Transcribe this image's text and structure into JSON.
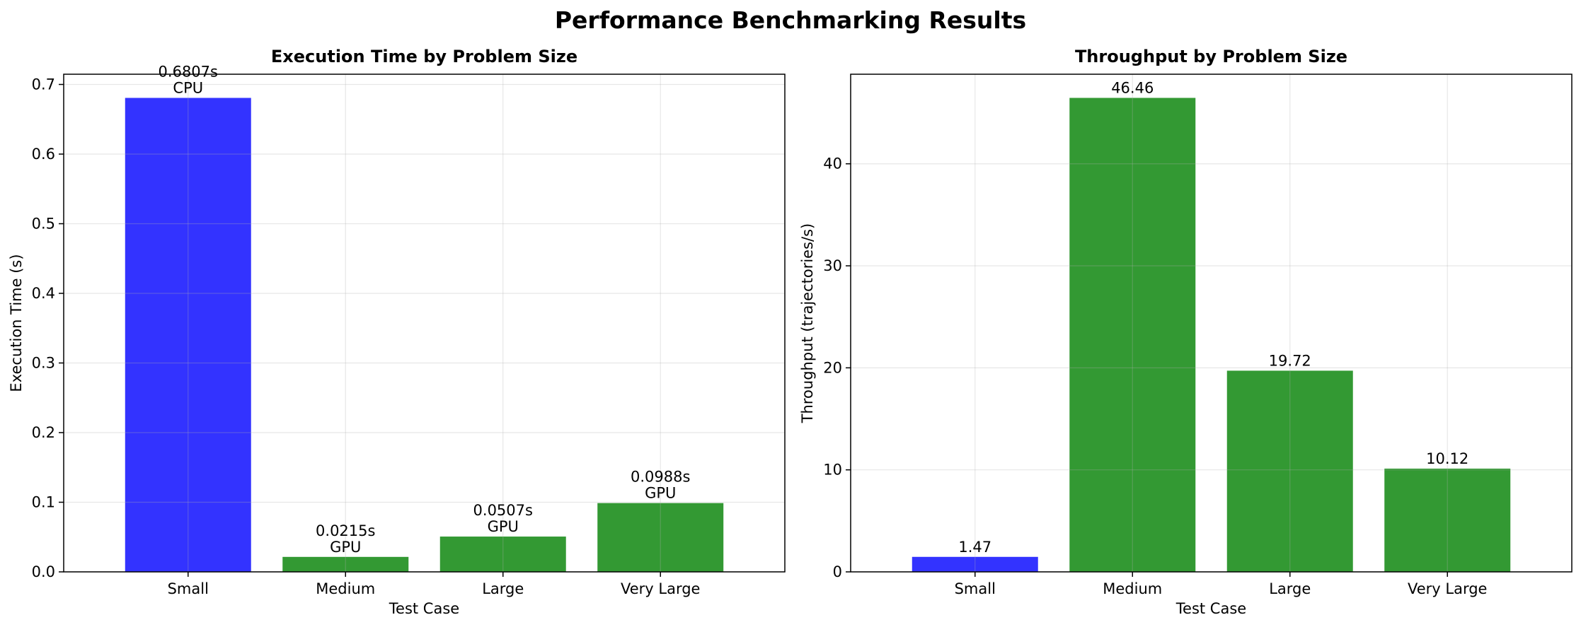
{
  "figure_title": "Performance Benchmarking Results",
  "colors": {
    "cpu": "#3333ff",
    "gpu": "#339933"
  },
  "chart_data": [
    {
      "type": "bar",
      "title": "Execution Time by Problem Size",
      "xlabel": "Test Case",
      "ylabel": "Execution Time (s)",
      "categories": [
        "Small",
        "Medium",
        "Large",
        "Very Large"
      ],
      "values": [
        0.6807,
        0.0215,
        0.0507,
        0.0988
      ],
      "bar_labels": [
        "0.6807s\nCPU",
        "0.0215s\nGPU",
        "0.0507s\nGPU",
        "0.0988s\nGPU"
      ],
      "bar_colors": [
        "cpu",
        "gpu",
        "gpu",
        "gpu"
      ],
      "ylim": [
        0,
        0.7147
      ],
      "yticks": [
        0.0,
        0.1,
        0.2,
        0.3,
        0.4,
        0.5,
        0.6,
        0.7
      ],
      "ytick_labels": [
        "0.0",
        "0.1",
        "0.2",
        "0.3",
        "0.4",
        "0.5",
        "0.6",
        "0.7"
      ],
      "grid": true
    },
    {
      "type": "bar",
      "title": "Throughput by Problem Size",
      "xlabel": "Test Case",
      "ylabel": "Throughput (trajectories/s)",
      "categories": [
        "Small",
        "Medium",
        "Large",
        "Very Large"
      ],
      "values": [
        1.47,
        46.46,
        19.72,
        10.12
      ],
      "bar_labels": [
        "1.47",
        "46.46",
        "19.72",
        "10.12"
      ],
      "bar_colors": [
        "cpu",
        "gpu",
        "gpu",
        "gpu"
      ],
      "ylim": [
        0,
        48.78
      ],
      "yticks": [
        0,
        10,
        20,
        30,
        40
      ],
      "ytick_labels": [
        "0",
        "10",
        "20",
        "30",
        "40"
      ],
      "grid": true
    }
  ]
}
